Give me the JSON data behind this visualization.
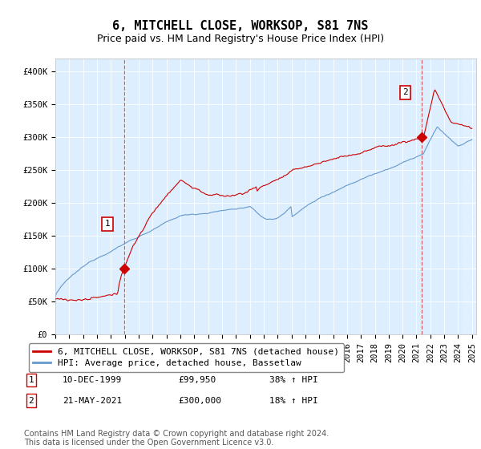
{
  "title": "6, MITCHELL CLOSE, WORKSOP, S81 7NS",
  "subtitle": "Price paid vs. HM Land Registry's House Price Index (HPI)",
  "ylim": [
    0,
    420000
  ],
  "yticks": [
    0,
    50000,
    100000,
    150000,
    200000,
    250000,
    300000,
    350000,
    400000
  ],
  "ytick_labels": [
    "£0",
    "£50K",
    "£100K",
    "£150K",
    "£200K",
    "£250K",
    "£300K",
    "£350K",
    "£400K"
  ],
  "sale1_year": 1999.94,
  "sale1_price": 99950,
  "sale1_label": "1",
  "sale1_date": "10-DEC-1999",
  "sale1_hpi": "38% ↑ HPI",
  "sale2_year": 2021.38,
  "sale2_price": 300000,
  "sale2_label": "2",
  "sale2_date": "21-MAY-2021",
  "sale2_hpi": "18% ↑ HPI",
  "line_color_red": "#cc0000",
  "line_color_blue": "#6699cc",
  "bg_plot": "#ddeeff",
  "bg_figure": "#ffffff",
  "grid_color": "#ffffff",
  "legend_label_red": "6, MITCHELL CLOSE, WORKSOP, S81 7NS (detached house)",
  "legend_label_blue": "HPI: Average price, detached house, Bassetlaw",
  "footer": "Contains HM Land Registry data © Crown copyright and database right 2024.\nThis data is licensed under the Open Government Licence v3.0.",
  "title_fontsize": 11,
  "subtitle_fontsize": 9,
  "tick_fontsize": 7.5,
  "legend_fontsize": 8,
  "footer_fontsize": 7
}
